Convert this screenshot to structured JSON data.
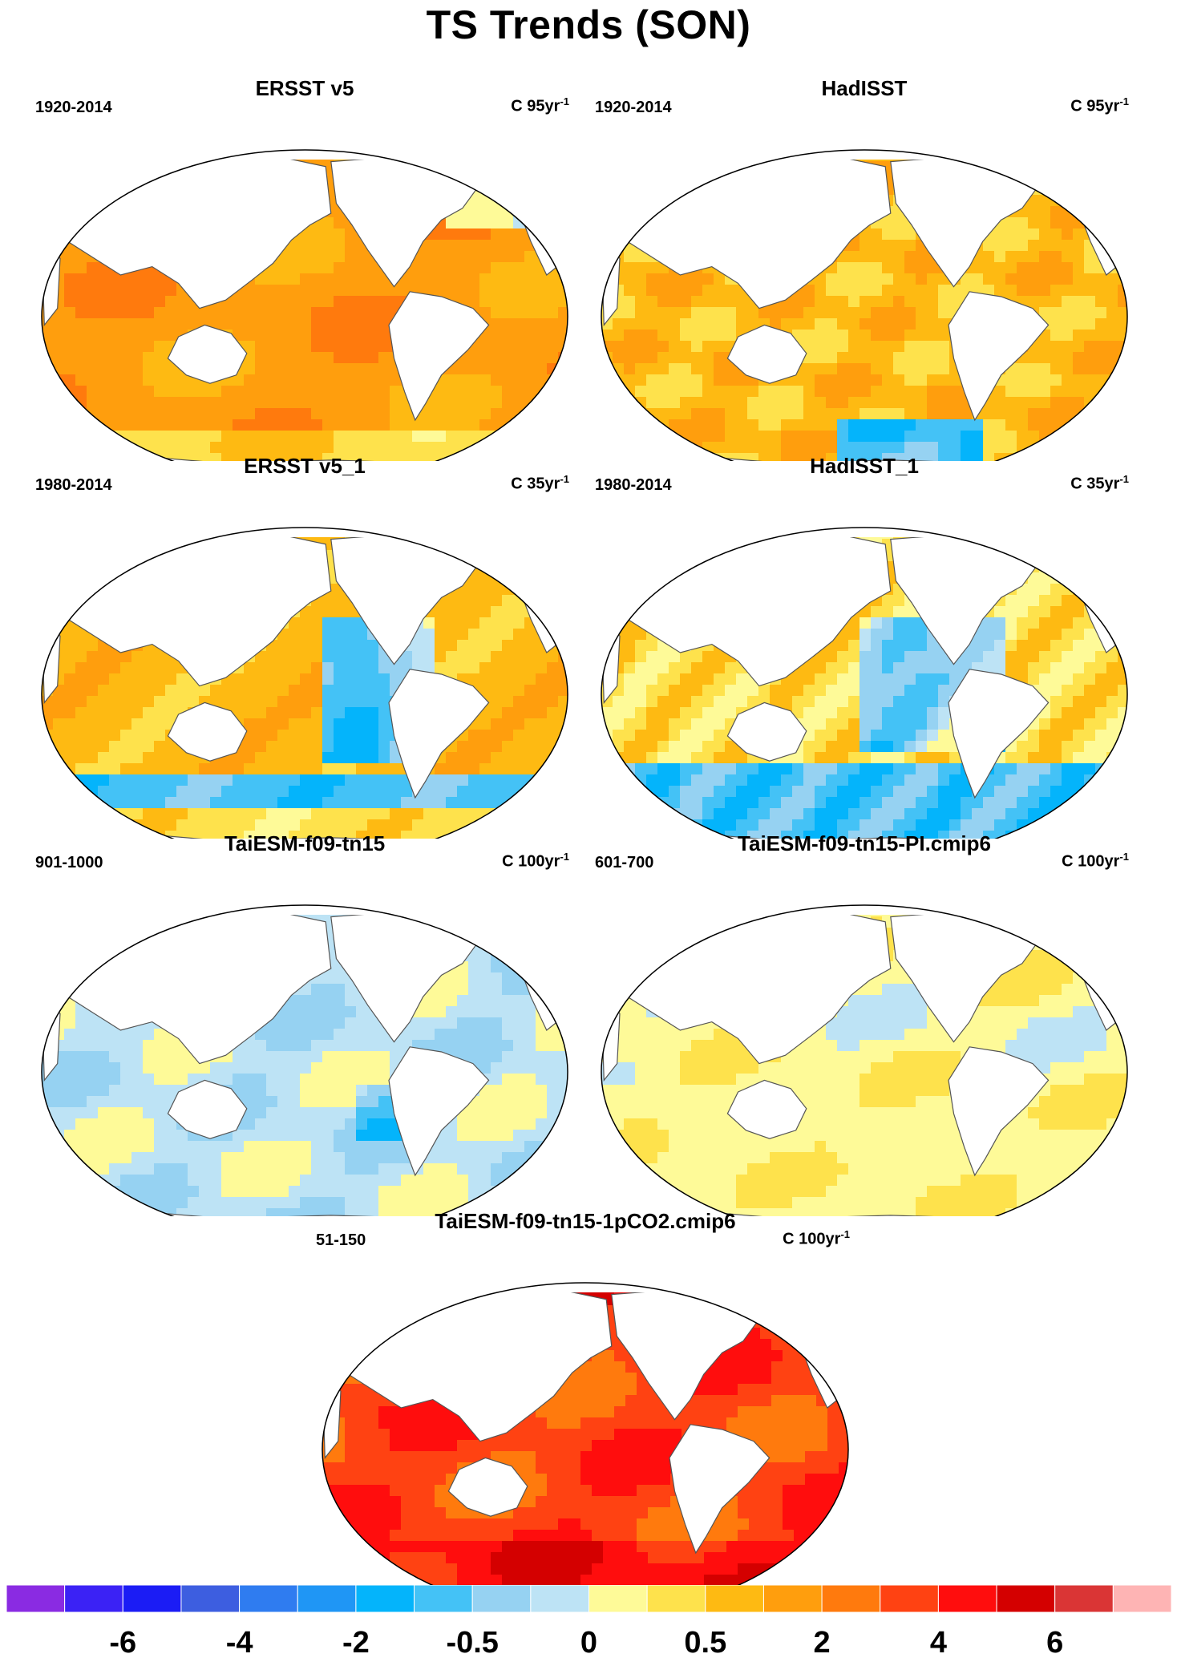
{
  "title": "TS Trends (SON)",
  "colors": {
    "land": "#ffffff",
    "coast": "#555555",
    "scale": [
      "#8a2be2",
      "#3b22f5",
      "#1b1cf5",
      "#3d5ee0",
      "#2f7cf0",
      "#1f96f5",
      "#04b4fb",
      "#44c2f6",
      "#96d2f2",
      "#bde3f5",
      "#fefa98",
      "#fee24c",
      "#feba12",
      "#ff9e0d",
      "#ff7a0d",
      "#ff4212",
      "#ff0d0d",
      "#d40000",
      "#da3535",
      "#feb4b4"
    ]
  },
  "colorbar": {
    "ticks": [
      {
        "label": "-6",
        "boundary": 2
      },
      {
        "label": "-4",
        "boundary": 4
      },
      {
        "label": "-2",
        "boundary": 6
      },
      {
        "label": "-0.5",
        "boundary": 8
      },
      {
        "label": "0",
        "boundary": 10
      },
      {
        "label": "0.5",
        "boundary": 12
      },
      {
        "label": "2",
        "boundary": 14
      },
      {
        "label": "4",
        "boundary": 16
      },
      {
        "label": "6",
        "boundary": 18
      }
    ]
  },
  "panels": [
    {
      "id": "ersst",
      "title": "ERSST v5",
      "period": "1920-2014",
      "units": "C 95yr",
      "units_exp": "-1",
      "base": 13,
      "pattern": "warm"
    },
    {
      "id": "hadisst",
      "title": "HadISST",
      "period": "1920-2014",
      "units": "C 95yr",
      "units_exp": "-1",
      "base": 12,
      "pattern": "warm-noisy"
    },
    {
      "id": "ersst1",
      "title": "ERSST v5_1",
      "period": "1980-2014",
      "units": "C 35yr",
      "units_exp": "-1",
      "base": 12,
      "pattern": "lanina"
    },
    {
      "id": "hadisst1",
      "title": "HadISST_1",
      "period": "1980-2014",
      "units": "C 35yr",
      "units_exp": "-1",
      "base": 11,
      "pattern": "lanina-noisy"
    },
    {
      "id": "tai",
      "title": "TaiESM-f09-tn15",
      "period": "901-1000",
      "units": "C 100yr",
      "units_exp": "-1",
      "base": 9,
      "pattern": "cool-weak"
    },
    {
      "id": "taipi",
      "title": "TaiESM-f09-tn15-PI.cmip6",
      "period": "601-700",
      "units": "C 100yr",
      "units_exp": "-1",
      "base": 10,
      "pattern": "neutral"
    },
    {
      "id": "tai1pct",
      "title": "TaiESM-f09-tn15-1pCO2.cmip6",
      "period": "51-150",
      "units": "C 100yr",
      "units_exp": "-1",
      "base": 15,
      "pattern": "hot"
    }
  ]
}
